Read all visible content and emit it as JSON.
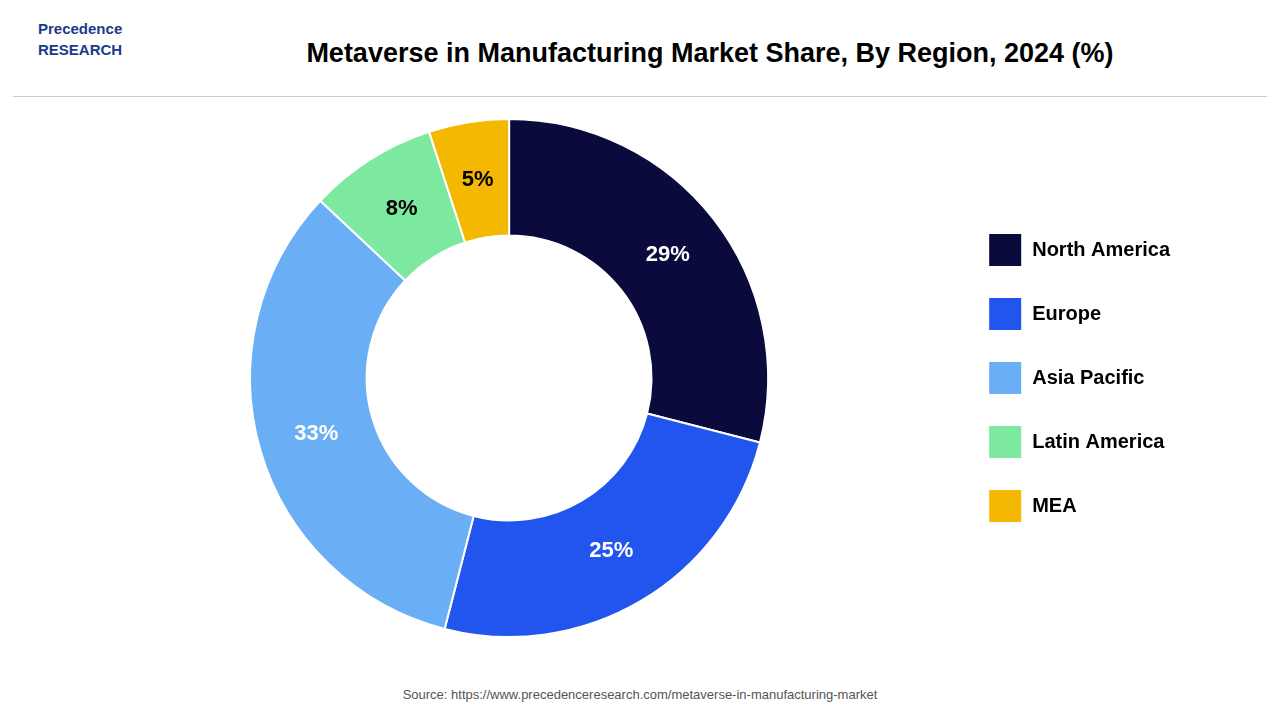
{
  "chart_data": {
    "type": "donut",
    "title": "Metaverse in Manufacturing Market Share, By Region, 2024 (%)",
    "categories": [
      "North America",
      "Europe",
      "Asia Pacific",
      "Latin America",
      "MEA"
    ],
    "values": [
      29,
      25,
      33,
      8,
      5
    ],
    "value_labels": [
      "29%",
      "25%",
      "33%",
      "8%",
      "5%"
    ],
    "colors": [
      "#0a0a3d",
      "#2255ee",
      "#6aaff5",
      "#7de8a0",
      "#f5b800"
    ],
    "data_labels": true,
    "legend": "right",
    "annotations": [
      "Precedence\nRESEARCH",
      "Source: https://www.precedenceresearch.com/metaverse-in-manufacturing-market"
    ]
  }
}
